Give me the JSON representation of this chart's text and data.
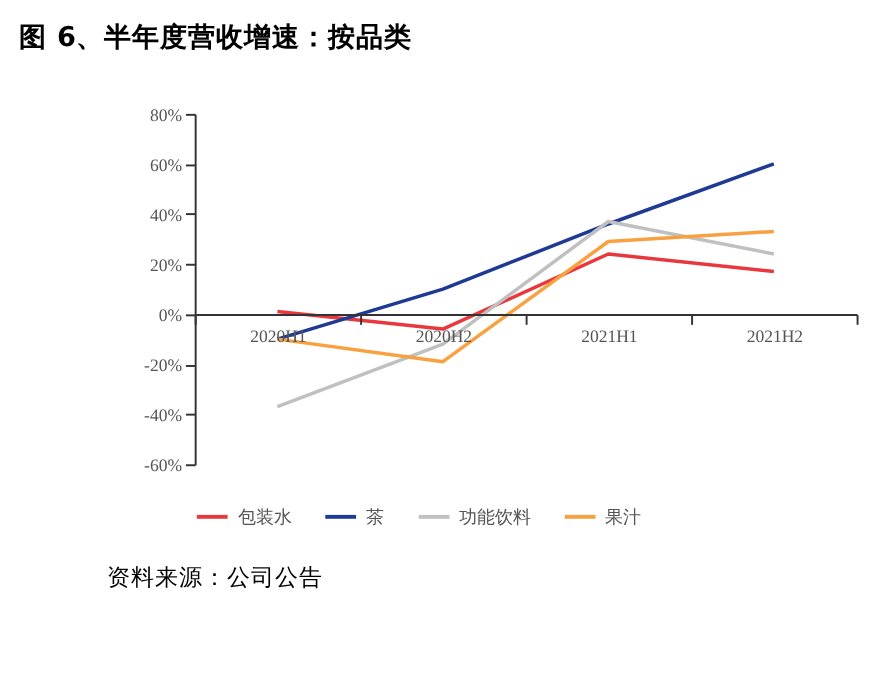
{
  "chart_data": {
    "type": "line",
    "title": "图 6、半年度营收增速：按品类",
    "categories": [
      "2020H1",
      "2020H2",
      "2021H1",
      "2021H2"
    ],
    "series": [
      {
        "name": "包装水",
        "color": "#e8383d",
        "values": [
          1,
          -6,
          24,
          17
        ]
      },
      {
        "name": "茶",
        "color": "#1f3a93",
        "values": [
          -10,
          10,
          36,
          60
        ]
      },
      {
        "name": "功能饮料",
        "color": "#c0c0c0",
        "values": [
          -37,
          -12,
          37,
          24
        ]
      },
      {
        "name": "果汁",
        "color": "#f9a040",
        "values": [
          -10,
          -19,
          29,
          33
        ]
      }
    ],
    "ylim": [
      -60,
      80
    ],
    "yticks": [
      {
        "value": -60,
        "label": "-60%"
      },
      {
        "value": -40,
        "label": "-40%"
      },
      {
        "value": -20,
        "label": "-20%"
      },
      {
        "value": 0,
        "label": "0%"
      },
      {
        "value": 20,
        "label": "20%"
      },
      {
        "value": 40,
        "label": "40%"
      },
      {
        "value": 60,
        "label": "60%"
      },
      {
        "value": 80,
        "label": "80%"
      }
    ],
    "grid": false,
    "legend": "bottom",
    "marker": "none",
    "line_style": "solid",
    "annotations": [
      "资料来源：公司公告"
    ]
  }
}
